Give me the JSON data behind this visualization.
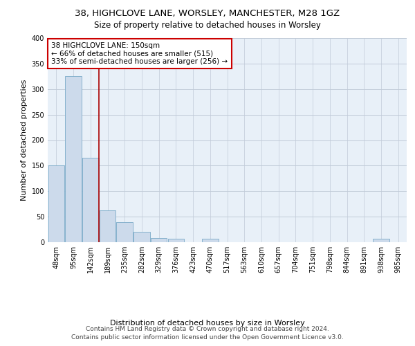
{
  "title1": "38, HIGHCLOVE LANE, WORSLEY, MANCHESTER, M28 1GZ",
  "title2": "Size of property relative to detached houses in Worsley",
  "xlabel": "Distribution of detached houses by size in Worsley",
  "ylabel": "Number of detached properties",
  "footer": "Contains HM Land Registry data © Crown copyright and database right 2024.\nContains public sector information licensed under the Open Government Licence v3.0.",
  "categories": [
    "48sqm",
    "95sqm",
    "142sqm",
    "189sqm",
    "235sqm",
    "282sqm",
    "329sqm",
    "376sqm",
    "423sqm",
    "470sqm",
    "517sqm",
    "563sqm",
    "610sqm",
    "657sqm",
    "704sqm",
    "751sqm",
    "798sqm",
    "844sqm",
    "891sqm",
    "938sqm",
    "985sqm"
  ],
  "values": [
    150,
    325,
    165,
    63,
    40,
    20,
    8,
    7,
    0,
    7,
    0,
    0,
    0,
    0,
    0,
    0,
    0,
    0,
    0,
    7,
    0
  ],
  "bar_color": "#ccdaeb",
  "bar_edge_color": "#7aaac8",
  "background_color": "#e8f0f8",
  "grid_color": "#d0d8e4",
  "vline_x_index": 2,
  "vline_color": "#aa0000",
  "annotation_text": "38 HIGHCLOVE LANE: 150sqm\n← 66% of detached houses are smaller (515)\n33% of semi-detached houses are larger (256) →",
  "annotation_box_color": "#cc0000",
  "ylim": [
    0,
    400
  ],
  "yticks": [
    0,
    50,
    100,
    150,
    200,
    250,
    300,
    350,
    400
  ],
  "title1_fontsize": 9.5,
  "title2_fontsize": 8.5,
  "axis_label_fontsize": 8,
  "tick_fontsize": 7,
  "annotation_fontsize": 7.5,
  "footer_fontsize": 6.5
}
